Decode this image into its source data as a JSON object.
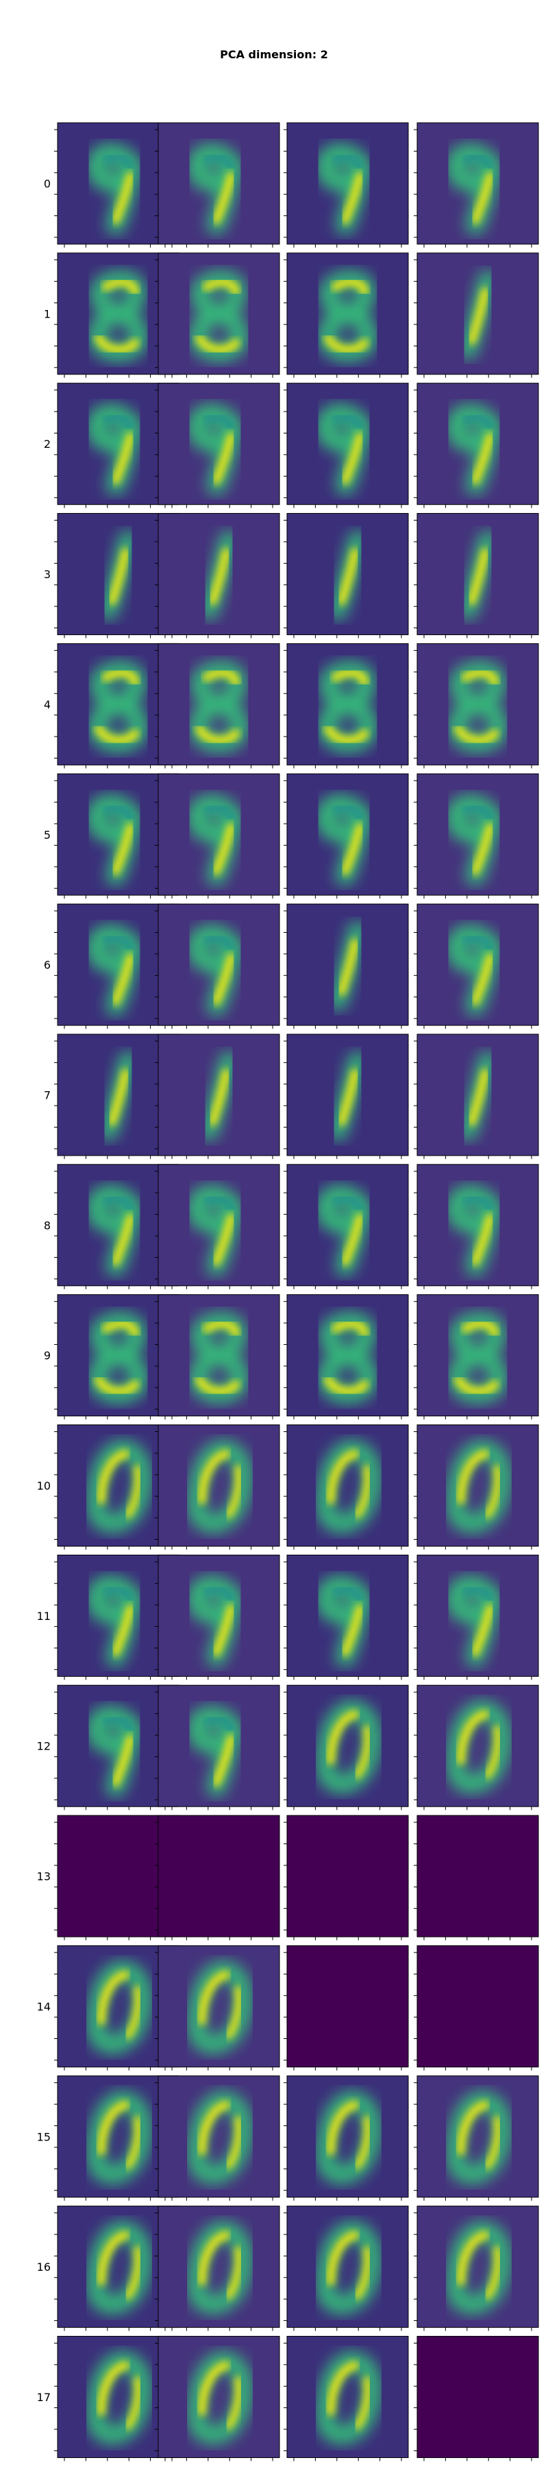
{
  "figure": {
    "title": "PCA dimension: 2"
  },
  "colormap": {
    "name": "viridis",
    "empty_color": "#440154"
  },
  "chart_data": {
    "type": "heatmap",
    "title": "PCA dimension: 2",
    "grid": {
      "rows": 18,
      "cols": 4
    },
    "row_labels": [
      "0",
      "1",
      "2",
      "3",
      "4",
      "5",
      "6",
      "7",
      "8",
      "9",
      "10",
      "11",
      "12",
      "13",
      "14",
      "15",
      "16",
      "17"
    ],
    "tick_labels": "none",
    "colormap": "viridis",
    "panels": [
      [
        "nine",
        "nine",
        "nine",
        "nine"
      ],
      [
        "eight",
        "eight",
        "eight",
        "one"
      ],
      [
        "nine",
        "nine",
        "nine",
        "nine"
      ],
      [
        "one",
        "one",
        "one",
        "one"
      ],
      [
        "eight",
        "eight",
        "eight",
        "eight"
      ],
      [
        "nine",
        "nine",
        "nine",
        "nine"
      ],
      [
        "nine",
        "nine",
        "one",
        "nine"
      ],
      [
        "one",
        "one",
        "one",
        "one"
      ],
      [
        "nine",
        "nine",
        "nine",
        "nine"
      ],
      [
        "eight",
        "eight",
        "eight",
        "eight"
      ],
      [
        "zero",
        "zero",
        "zero",
        "zero"
      ],
      [
        "nine",
        "nine",
        "nine",
        "nine"
      ],
      [
        "nine",
        "nine",
        "zero",
        "zero"
      ],
      [
        "empty",
        "empty",
        "empty",
        "empty"
      ],
      [
        "zero",
        "zero",
        "empty",
        "empty"
      ],
      [
        "zero",
        "zero",
        "zero",
        "zero"
      ],
      [
        "zero",
        "zero",
        "zero",
        "zero"
      ],
      [
        "zero",
        "zero",
        "zero",
        "empty"
      ]
    ]
  }
}
